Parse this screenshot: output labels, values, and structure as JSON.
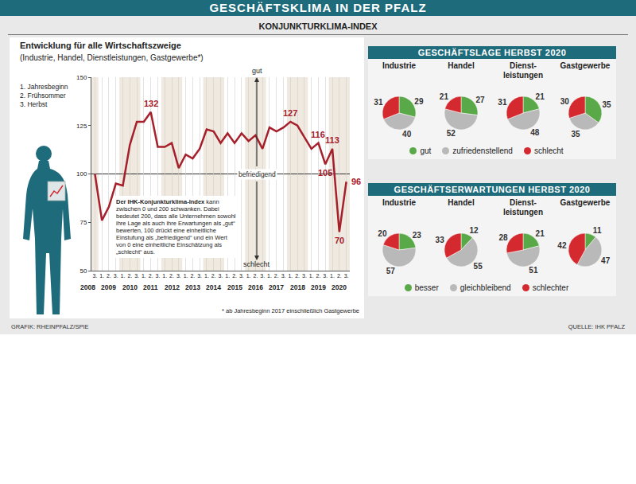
{
  "header": {
    "title": "GESCHÄFTSKLIMA IN DER PFALZ",
    "subtitle": "KONJUNKTURKLIMA-INDEX"
  },
  "footer": {
    "credit": "GRAFIK: RHEINPFALZ/SPIE",
    "source": "QUELLE: IHK PFALZ"
  },
  "chart_data": [
    {
      "type": "line",
      "title": "Entwicklung für alle Wirtschaftszweige",
      "subtitle": "(Industrie, Handel, Dienstleistungen, Gastgewerbe*)",
      "period_legend": [
        "1. Jahresbeginn",
        "2. Frühsommer",
        "3. Herbst"
      ],
      "categories": [
        "3.",
        "1.",
        "2.",
        "3.",
        "1.",
        "2.",
        "3.",
        "1.",
        "2.",
        "3.",
        "1.",
        "2.",
        "3.",
        "1.",
        "2.",
        "3.",
        "1.",
        "2.",
        "3.",
        "1.",
        "2.",
        "3.",
        "1.",
        "2.",
        "3.",
        "1.",
        "2.",
        "3.",
        "1.",
        "2.",
        "3.",
        "1.",
        "2.",
        "3.",
        "1.",
        "2.",
        "3."
      ],
      "years": [
        "2008",
        "2009",
        "2010",
        "2011",
        "2012",
        "2013",
        "2014",
        "2015",
        "2016",
        "2017",
        "2018",
        "2019",
        "2020"
      ],
      "values": [
        100,
        76,
        83,
        95,
        94,
        115,
        127,
        127,
        132,
        114,
        114,
        116,
        103,
        110,
        108,
        113,
        123,
        122,
        116,
        121,
        116,
        121,
        117,
        120,
        113,
        124,
        122,
        124,
        127,
        125,
        119,
        113,
        116,
        105,
        113,
        70,
        96
      ],
      "value_labels": [
        null,
        null,
        null,
        null,
        null,
        null,
        null,
        null,
        "132",
        null,
        null,
        null,
        null,
        null,
        null,
        null,
        null,
        null,
        null,
        null,
        null,
        null,
        null,
        null,
        null,
        null,
        null,
        null,
        "127",
        null,
        null,
        null,
        "116",
        "105",
        "113",
        "70",
        "96"
      ],
      "color": "#a6202b",
      "ylim": [
        50,
        150
      ],
      "yticks": [
        50,
        75,
        100,
        125,
        150
      ],
      "grid": true,
      "reference_line": {
        "value": 100,
        "label": "befriedigend"
      },
      "scale_labels": {
        "top": "gut",
        "bottom": "schlecht"
      },
      "note": {
        "lead": "Der IHK-Konjunkturklima-Index",
        "text": "kann zwischen 0 und 200 schwanken. Dabei bedeutet 200, dass alle Unternehmen sowohl ihre Lage als auch ihre Erwartungen als „gut“ bewerten, 100 drückt eine einheitliche Einstufung als „befriedigend“ und ein Wert von 0 eine einheitliche Einschätzung als „schlecht“ aus."
      },
      "footnote": "* ab Jahresbeginn 2017 einschließlich Gastgewerbe"
    },
    {
      "type": "pie",
      "title": "GESCHÄFTSLAGE HERBST 2020",
      "categories": [
        "gut",
        "zufriedenstellend",
        "schlecht"
      ],
      "colors": [
        "#5aa949",
        "#b9b9b9",
        "#d42a2f"
      ],
      "data_labels": true,
      "pies": [
        {
          "name": "Industrie",
          "values": [
            29,
            40,
            31
          ]
        },
        {
          "name": "Handel",
          "values": [
            27,
            52,
            21
          ]
        },
        {
          "name": "Dienst­leistungen",
          "values": [
            21,
            48,
            31
          ]
        },
        {
          "name": "Gast­gewerbe",
          "values": [
            35,
            35,
            30
          ]
        }
      ]
    },
    {
      "type": "pie",
      "title": "GESCHÄFTSERWARTUNGEN HERBST 2020",
      "categories": [
        "besser",
        "gleichbleibend",
        "schlechter"
      ],
      "colors": [
        "#5aa949",
        "#b9b9b9",
        "#d42a2f"
      ],
      "data_labels": true,
      "pies": [
        {
          "name": "Industrie",
          "values": [
            23,
            57,
            20
          ]
        },
        {
          "name": "Handel",
          "values": [
            12,
            55,
            33
          ]
        },
        {
          "name": "Dienst­leistungen",
          "values": [
            21,
            51,
            28
          ]
        },
        {
          "name": "Gast­gewerbe",
          "values": [
            11,
            47,
            42
          ]
        }
      ]
    }
  ]
}
